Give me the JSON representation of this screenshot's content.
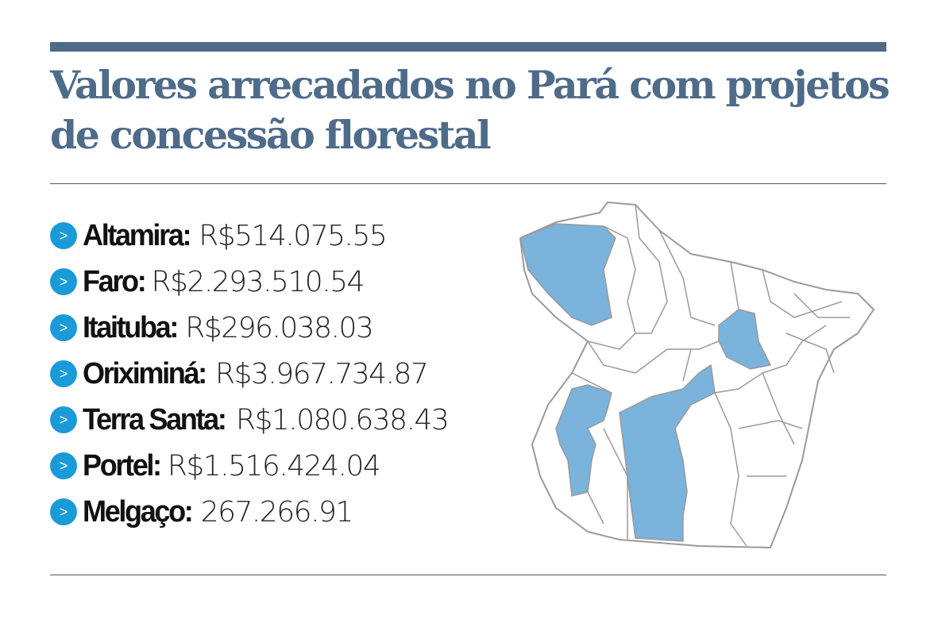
{
  "title": "Valores arrecadados no Pará com projetos de concessão florestal",
  "items": [
    {
      "name": "Altamira:",
      "value": "R$514.075.55"
    },
    {
      "name": "Faro:",
      "value": "R$2.293.510.54"
    },
    {
      "name": "Itaituba:",
      "value": "R$296.038.03"
    },
    {
      "name": "Oriximiná:",
      "value": "R$3.967.734.87"
    },
    {
      "name": "Terra Santa:",
      "value": "R$1.080.638.43"
    },
    {
      "name": "Portel:",
      "value": "R$1.516.424.04"
    },
    {
      "name": "Melgaço:",
      "value": "267.266.91"
    }
  ],
  "bullet_icon": "chevron-right-icon",
  "colors": {
    "title": "#4e6b8a",
    "bullet": "#1a9ad9",
    "highlight": "#7ab3dc",
    "boundary": "#9a9a9a"
  },
  "map": {
    "region": "Pará",
    "highlighted_municipalities": true
  }
}
